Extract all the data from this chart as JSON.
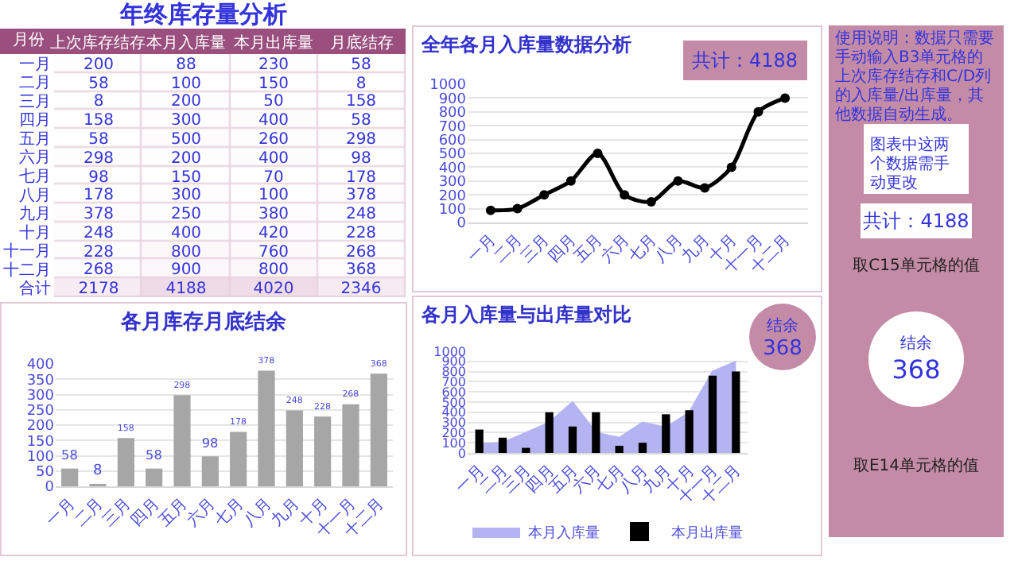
{
  "chart_data": [
    {
      "type": "heatmap",
      "title": "年终库存量分析",
      "ylabel": "月份",
      "categories": [
        "上次库存结存",
        "本月入库量",
        "本月出库量",
        "月底结存"
      ],
      "y_categories": [
        "一月",
        "二月",
        "三月",
        "四月",
        "五月",
        "六月",
        "七月",
        "八月",
        "九月",
        "十月",
        "十一月",
        "十二月",
        "合计"
      ],
      "cells": [
        [
          200,
          88,
          230,
          58
        ],
        [
          58,
          100,
          150,
          8
        ],
        [
          8,
          200,
          50,
          158
        ],
        [
          158,
          300,
          400,
          58
        ],
        [
          58,
          500,
          260,
          298
        ],
        [
          298,
          200,
          400,
          98
        ],
        [
          98,
          150,
          70,
          178
        ],
        [
          178,
          300,
          100,
          378
        ],
        [
          378,
          250,
          380,
          248
        ],
        [
          248,
          400,
          420,
          228
        ],
        [
          228,
          800,
          760,
          268
        ],
        [
          268,
          900,
          800,
          368
        ],
        [
          2178,
          4188,
          4020,
          2346
        ]
      ],
      "cell_labels": [
        [
          "200",
          "88",
          "230",
          "58"
        ],
        [
          "58",
          "100",
          "150",
          "8"
        ],
        [
          "8",
          "200",
          "50",
          "158"
        ],
        [
          "158",
          "300",
          "400",
          "58"
        ],
        [
          "58",
          "500",
          "260",
          "298"
        ],
        [
          "298",
          "200",
          "400",
          "98"
        ],
        [
          "98",
          "150",
          "70",
          "178"
        ],
        [
          "178",
          "300",
          "100",
          "378"
        ],
        [
          "378",
          "250",
          "380",
          "248"
        ],
        [
          "248",
          "400",
          "420",
          "228"
        ],
        [
          "228",
          "800",
          "760",
          "268"
        ],
        [
          "268",
          "900",
          "800",
          "368"
        ],
        [
          "2178",
          "4188",
          "4020",
          "2346"
        ]
      ]
    },
    {
      "type": "line",
      "title": "全年各月入库量数据分析",
      "annotations": [
        "共计：4188"
      ],
      "categories": [
        "一月",
        "二月",
        "三月",
        "四月",
        "五月",
        "六月",
        "七月",
        "八月",
        "九月",
        "十月",
        "十一月",
        "十二月"
      ],
      "values": [
        88,
        100,
        200,
        300,
        500,
        200,
        150,
        300,
        250,
        400,
        800,
        900
      ],
      "color": "#000000",
      "marker": "circle",
      "ylim": [
        0,
        1000
      ],
      "yticks": [
        0,
        100,
        200,
        300,
        400,
        500,
        600,
        700,
        800,
        900,
        1000
      ],
      "grid": "y"
    },
    {
      "type": "bar",
      "title": "各月库存月底结余",
      "categories": [
        "一月",
        "二月",
        "三月",
        "四月",
        "五月",
        "六月",
        "七月",
        "八月",
        "九月",
        "十月",
        "十一月",
        "十二月"
      ],
      "values": [
        58,
        8,
        158,
        58,
        298,
        98,
        178,
        378,
        248,
        228,
        268,
        368
      ],
      "color": "#a6a6a6",
      "data_labels": true,
      "ylim": [
        0,
        400
      ],
      "yticks": [
        0,
        50,
        100,
        150,
        200,
        250,
        300,
        350,
        400
      ],
      "grid": "y"
    },
    {
      "type": "bar",
      "title": "各月入库量与出库量对比",
      "annotations": [
        "结余",
        "368"
      ],
      "categories": [
        "一月",
        "二月",
        "三月",
        "四月",
        "五月",
        "六月",
        "七月",
        "八月",
        "九月",
        "十月",
        "十一月",
        "十二月"
      ],
      "series": [
        {
          "name": "本月入库量",
          "type": "area",
          "color": "#b4b4f2",
          "values": [
            88,
            100,
            200,
            300,
            500,
            200,
            150,
            300,
            250,
            400,
            800,
            900
          ]
        },
        {
          "name": "本月出库量",
          "type": "bar",
          "color": "#000000",
          "values": [
            230,
            150,
            50,
            400,
            260,
            400,
            70,
            100,
            380,
            420,
            760,
            800
          ]
        }
      ],
      "ylim": [
        0,
        1000
      ],
      "yticks": [
        0,
        100,
        200,
        300,
        400,
        500,
        600,
        700,
        800,
        900,
        1000
      ],
      "grid": "y",
      "legend": "bottom"
    },
    {
      "type": "other",
      "annotations": [
        "使用说明：数据只需要手动输入B3单元格的上次库存结存和C/D列的入库量/出库量，其他数据自动生成。",
        "图表中这两个数据需手动更改",
        "共计：4188",
        "取C15单元格的值",
        "结余",
        "368",
        "取E14单元格的值"
      ]
    }
  ]
}
